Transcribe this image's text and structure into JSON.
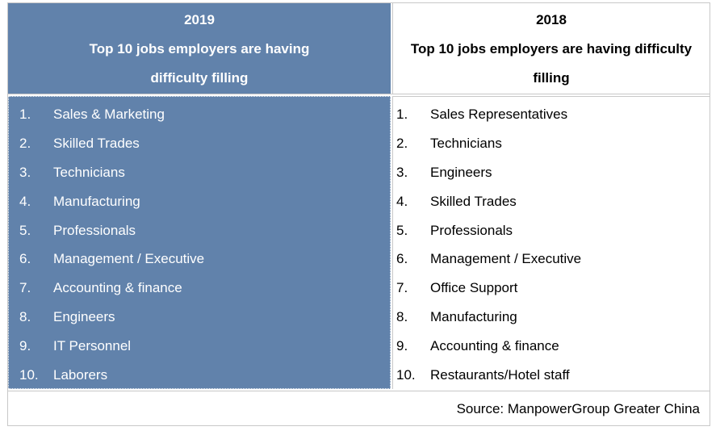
{
  "table": {
    "left_header": {
      "year": "2019",
      "title_line1": "Top 10 jobs employers are having",
      "title_line2": "difficulty filling"
    },
    "right_header": {
      "year": "2018",
      "title_line1": "Top 10 jobs employers are having difficulty",
      "title_line2": "filling"
    },
    "jobs_2019": [
      {
        "num": "1.",
        "label": "Sales & Marketing"
      },
      {
        "num": "2.",
        "label": "Skilled Trades"
      },
      {
        "num": "3.",
        "label": "Technicians"
      },
      {
        "num": "4.",
        "label": "Manufacturing"
      },
      {
        "num": "5.",
        "label": "Professionals"
      },
      {
        "num": "6.",
        "label": "Management / Executive"
      },
      {
        "num": "7.",
        "label": "Accounting & finance"
      },
      {
        "num": "8.",
        "label": "Engineers"
      },
      {
        "num": "9.",
        "label": "IT Personnel"
      },
      {
        "num": "10.",
        "label": "Laborers"
      }
    ],
    "jobs_2018": [
      {
        "num": "1.",
        "label": "Sales Representatives"
      },
      {
        "num": "2.",
        "label": "Technicians"
      },
      {
        "num": "3.",
        "label": "Engineers"
      },
      {
        "num": "4.",
        "label": "Skilled Trades"
      },
      {
        "num": "5.",
        "label": "Professionals"
      },
      {
        "num": "6.",
        "label": "Management / Executive"
      },
      {
        "num": "7.",
        "label": "Office Support"
      },
      {
        "num": "8.",
        "label": "Manufacturing"
      },
      {
        "num": "9.",
        "label": "Accounting & finance"
      },
      {
        "num": "10.",
        "label": "Restaurants/Hotel staff"
      }
    ],
    "source": "Source: ManpowerGroup Greater China",
    "colors": {
      "header_2019_bg": "#6182ab",
      "text_on_blue": "#ffffff",
      "border": "#c8c8c8"
    }
  }
}
